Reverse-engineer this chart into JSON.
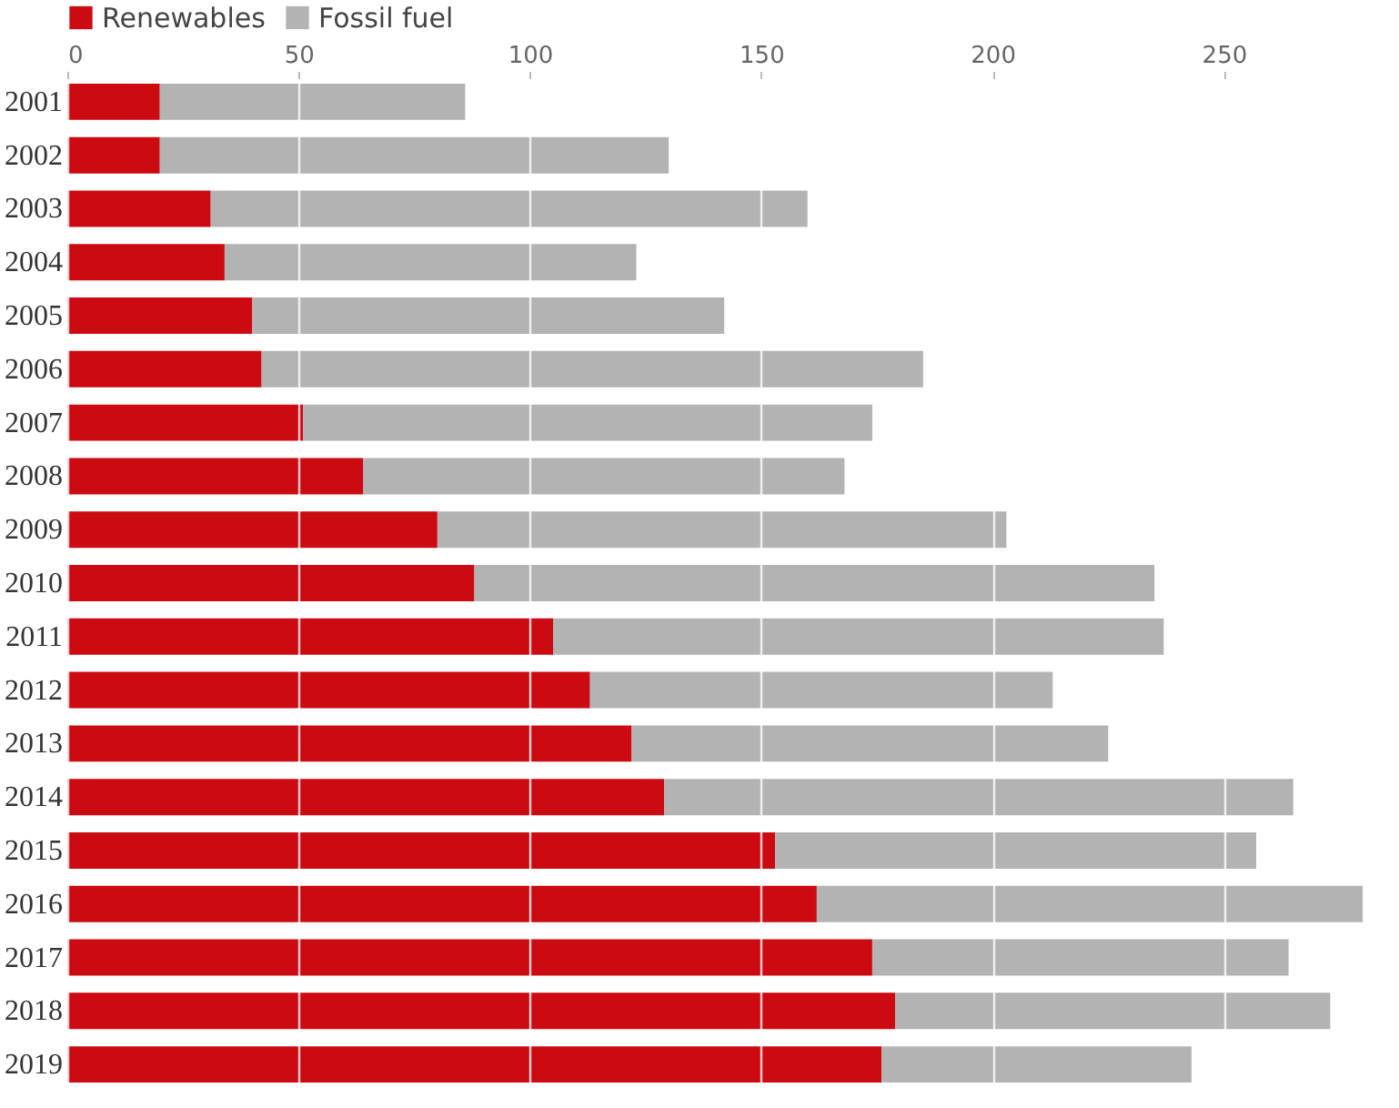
{
  "chart_data": {
    "type": "bar",
    "orientation": "horizontal",
    "stacked": true,
    "categories": [
      "2001",
      "2002",
      "2003",
      "2004",
      "2005",
      "2006",
      "2007",
      "2008",
      "2009",
      "2010",
      "2011",
      "2012",
      "2013",
      "2014",
      "2015",
      "2016",
      "2017",
      "2018",
      "2019"
    ],
    "series": [
      {
        "name": "Renewables",
        "color": "#cc0a11",
        "values": [
          20,
          20,
          31,
          34,
          40,
          42,
          51,
          64,
          80,
          88,
          105,
          113,
          122,
          129,
          153,
          162,
          174,
          179,
          176
        ]
      },
      {
        "name": "Fossil fuel",
        "color": "#b3b3b3",
        "values": [
          66,
          110,
          129,
          89,
          102,
          143,
          123,
          104,
          123,
          147,
          132,
          100,
          103,
          136,
          104,
          118,
          90,
          94,
          67
        ]
      }
    ],
    "xlim": [
      0,
      280
    ],
    "xticks": [
      0,
      50,
      100,
      150,
      200,
      250
    ],
    "grid": "x",
    "legend": "top left"
  }
}
